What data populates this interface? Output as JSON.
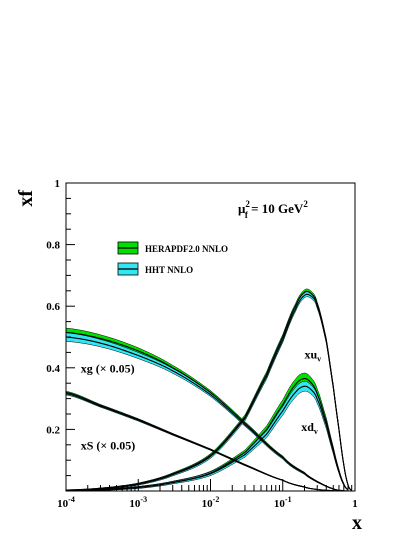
{
  "chart_data": {
    "type": "line",
    "xlabel": "x",
    "ylabel": "xf",
    "xscale": "log",
    "xlim": [
      0.0001,
      1
    ],
    "ylim": [
      0,
      1
    ],
    "grid": false,
    "legend_position": "upper-left",
    "x_ticks": [
      {
        "value": 0.0001,
        "base": "10",
        "exp": "-4"
      },
      {
        "value": 0.001,
        "base": "10",
        "exp": "-3"
      },
      {
        "value": 0.01,
        "base": "10",
        "exp": "-2"
      },
      {
        "value": 0.1,
        "base": "10",
        "exp": "-1"
      },
      {
        "value": 1,
        "base": "1",
        "exp": ""
      }
    ],
    "y_ticks": [
      {
        "value": 0.2,
        "label": "0.2"
      },
      {
        "value": 0.4,
        "label": "0.4"
      },
      {
        "value": 0.6,
        "label": "0.6"
      },
      {
        "value": 0.8,
        "label": "0.8"
      },
      {
        "value": 1.0,
        "label": "1"
      }
    ],
    "scale_annotation": {
      "prefix": "μ",
      "sub": "f",
      "sup": "2",
      "rest": " = 10 GeV",
      "sup2": "2"
    },
    "legend": [
      {
        "label": "HERAPDF2.0 NNLO",
        "fill": "#00e000",
        "line": "#000000"
      },
      {
        "label": "HHT NNLO",
        "fill": "#33e6f2",
        "line": "#000000"
      }
    ],
    "curve_labels": [
      {
        "id": "xuv",
        "main": "xu",
        "sub": "v",
        "x": 0.2,
        "y": 0.43
      },
      {
        "id": "xdv",
        "main": "xd",
        "sub": "v",
        "x": 0.18,
        "y": 0.195
      },
      {
        "id": "xg",
        "main": "xg (× 0.05)",
        "sub": "",
        "x": 0.00016,
        "y": 0.385
      },
      {
        "id": "xs",
        "main": "xS (× 0.05)",
        "sub": "",
        "x": 0.00016,
        "y": 0.135
      }
    ],
    "series": [
      {
        "name": "xuv",
        "x": [
          0.0001,
          0.0003,
          0.001,
          0.003,
          0.01,
          0.03,
          0.06,
          0.1,
          0.15,
          0.2,
          0.25,
          0.3,
          0.4,
          0.5,
          0.6,
          0.7,
          0.8,
          0.9
        ],
        "herapdf": [
          0.002,
          0.008,
          0.023,
          0.055,
          0.115,
          0.24,
          0.38,
          0.5,
          0.6,
          0.645,
          0.64,
          0.605,
          0.49,
          0.34,
          0.2,
          0.085,
          0.02,
          0.002
        ],
        "herapdf_band": [
          0.002,
          0.002,
          0.003,
          0.004,
          0.006,
          0.007,
          0.008,
          0.008,
          0.008,
          0.008,
          0.008,
          0.008,
          0.007,
          0.006,
          0.005,
          0.003,
          0.002,
          0.001
        ],
        "hht": [
          0.002,
          0.008,
          0.022,
          0.053,
          0.112,
          0.235,
          0.372,
          0.49,
          0.59,
          0.635,
          0.632,
          0.6,
          0.487,
          0.338,
          0.2,
          0.085,
          0.02,
          0.002
        ],
        "hht_band": [
          0.002,
          0.002,
          0.003,
          0.004,
          0.006,
          0.007,
          0.008,
          0.008,
          0.008,
          0.008,
          0.008,
          0.008,
          0.007,
          0.006,
          0.005,
          0.003,
          0.002,
          0.001
        ]
      },
      {
        "name": "xdv",
        "x": [
          0.0001,
          0.0003,
          0.001,
          0.003,
          0.01,
          0.03,
          0.06,
          0.1,
          0.15,
          0.2,
          0.25,
          0.3,
          0.4,
          0.5,
          0.6,
          0.7,
          0.8
        ],
        "herapdf": [
          0.001,
          0.004,
          0.012,
          0.028,
          0.058,
          0.125,
          0.2,
          0.28,
          0.345,
          0.365,
          0.35,
          0.315,
          0.225,
          0.135,
          0.065,
          0.022,
          0.004
        ],
        "herapdf_band": [
          0.001,
          0.002,
          0.003,
          0.004,
          0.006,
          0.008,
          0.012,
          0.016,
          0.018,
          0.018,
          0.017,
          0.016,
          0.013,
          0.01,
          0.006,
          0.003,
          0.001
        ],
        "hht": [
          0.001,
          0.004,
          0.011,
          0.027,
          0.056,
          0.118,
          0.185,
          0.26,
          0.32,
          0.34,
          0.328,
          0.298,
          0.215,
          0.13,
          0.063,
          0.021,
          0.004
        ],
        "hht_band": [
          0.001,
          0.002,
          0.003,
          0.004,
          0.006,
          0.008,
          0.011,
          0.014,
          0.016,
          0.016,
          0.015,
          0.014,
          0.012,
          0.009,
          0.006,
          0.003,
          0.001
        ]
      },
      {
        "name": "xg",
        "x": [
          0.0001,
          0.0003,
          0.001,
          0.003,
          0.01,
          0.03,
          0.1,
          0.2,
          0.3,
          0.5,
          0.7,
          0.8
        ],
        "herapdf": [
          0.515,
          0.495,
          0.455,
          0.4,
          0.32,
          0.22,
          0.11,
          0.058,
          0.03,
          0.007,
          0.001,
          0.0
        ],
        "herapdf_band": [
          0.014,
          0.012,
          0.01,
          0.008,
          0.006,
          0.005,
          0.004,
          0.003,
          0.002,
          0.001,
          0.0,
          0.0
        ],
        "hht": [
          0.5,
          0.48,
          0.44,
          0.39,
          0.313,
          0.215,
          0.108,
          0.057,
          0.03,
          0.007,
          0.001,
          0.0
        ],
        "hht_band": [
          0.014,
          0.012,
          0.01,
          0.008,
          0.006,
          0.005,
          0.004,
          0.003,
          0.002,
          0.001,
          0.0,
          0.0
        ]
      },
      {
        "name": "xs",
        "x": [
          0.0001,
          0.0003,
          0.001,
          0.003,
          0.01,
          0.03,
          0.1,
          0.2,
          0.3,
          0.5,
          0.7
        ],
        "herapdf": [
          0.32,
          0.278,
          0.232,
          0.185,
          0.135,
          0.085,
          0.035,
          0.013,
          0.005,
          0.001,
          0.0
        ],
        "herapdf_band": [
          0.004,
          0.003,
          0.003,
          0.002,
          0.002,
          0.002,
          0.001,
          0.001,
          0.0,
          0.0,
          0.0
        ],
        "hht": [
          0.316,
          0.275,
          0.23,
          0.183,
          0.134,
          0.084,
          0.035,
          0.013,
          0.005,
          0.001,
          0.0
        ],
        "hht_band": [
          0.004,
          0.003,
          0.003,
          0.002,
          0.002,
          0.002,
          0.001,
          0.001,
          0.0,
          0.0,
          0.0
        ]
      }
    ]
  }
}
